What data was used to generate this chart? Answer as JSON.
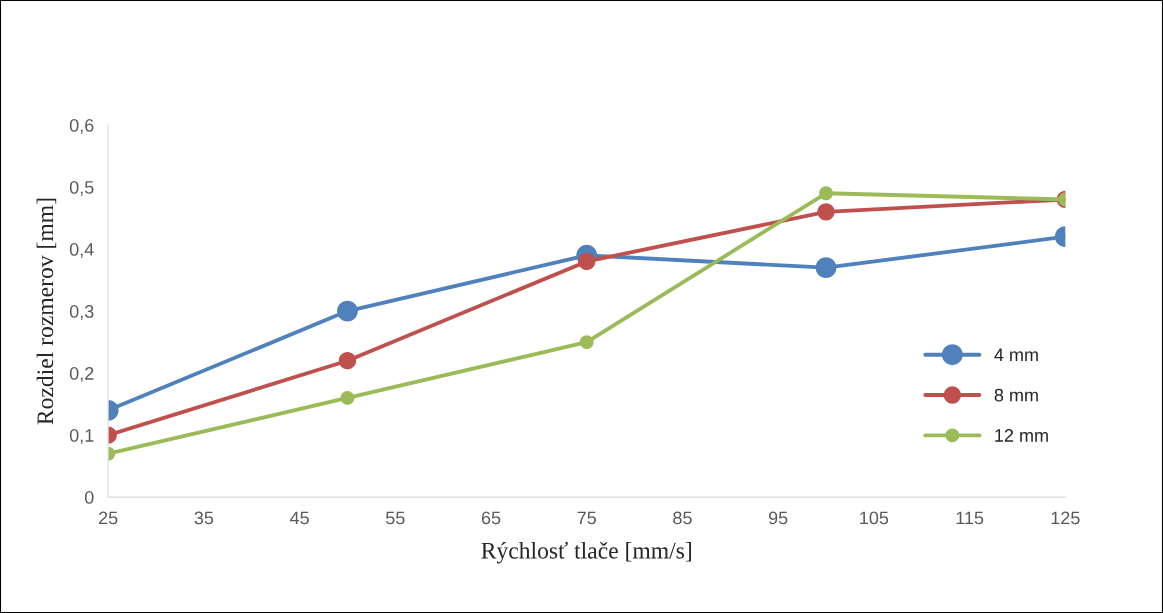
{
  "chart_data": {
    "type": "line",
    "xlabel": "Rýchlosť tlače [mm/s]",
    "ylabel": "Rozdiel rozmerov [mm]",
    "x": [
      25,
      50,
      75,
      100,
      125
    ],
    "series": [
      {
        "name": "4 mm",
        "color": "#4f81bd",
        "values": [
          0.14,
          0.3,
          0.39,
          0.37,
          0.42
        ]
      },
      {
        "name": "8 mm",
        "color": "#c0504d",
        "values": [
          0.1,
          0.22,
          0.38,
          0.46,
          0.48
        ]
      },
      {
        "name": "12 mm",
        "color": "#9bbb59",
        "values": [
          0.07,
          0.16,
          0.25,
          0.49,
          0.48
        ]
      }
    ],
    "xlim": [
      25,
      125
    ],
    "xticks": [
      25,
      35,
      45,
      55,
      65,
      75,
      85,
      95,
      105,
      115,
      125
    ],
    "ylim": [
      0,
      0.6
    ],
    "yticks": [
      0,
      {
        "value": 0.1,
        "label": "0,1"
      },
      {
        "value": 0.2,
        "label": "0,2"
      },
      {
        "value": 0.3,
        "label": "0,3"
      },
      {
        "value": 0.4,
        "label": "0,4"
      },
      {
        "value": 0.5,
        "label": "0,5"
      },
      {
        "value": 0.6,
        "label": "0,6"
      }
    ],
    "grid": false,
    "legend": "right",
    "marker": "circle",
    "line_style": "solid"
  }
}
